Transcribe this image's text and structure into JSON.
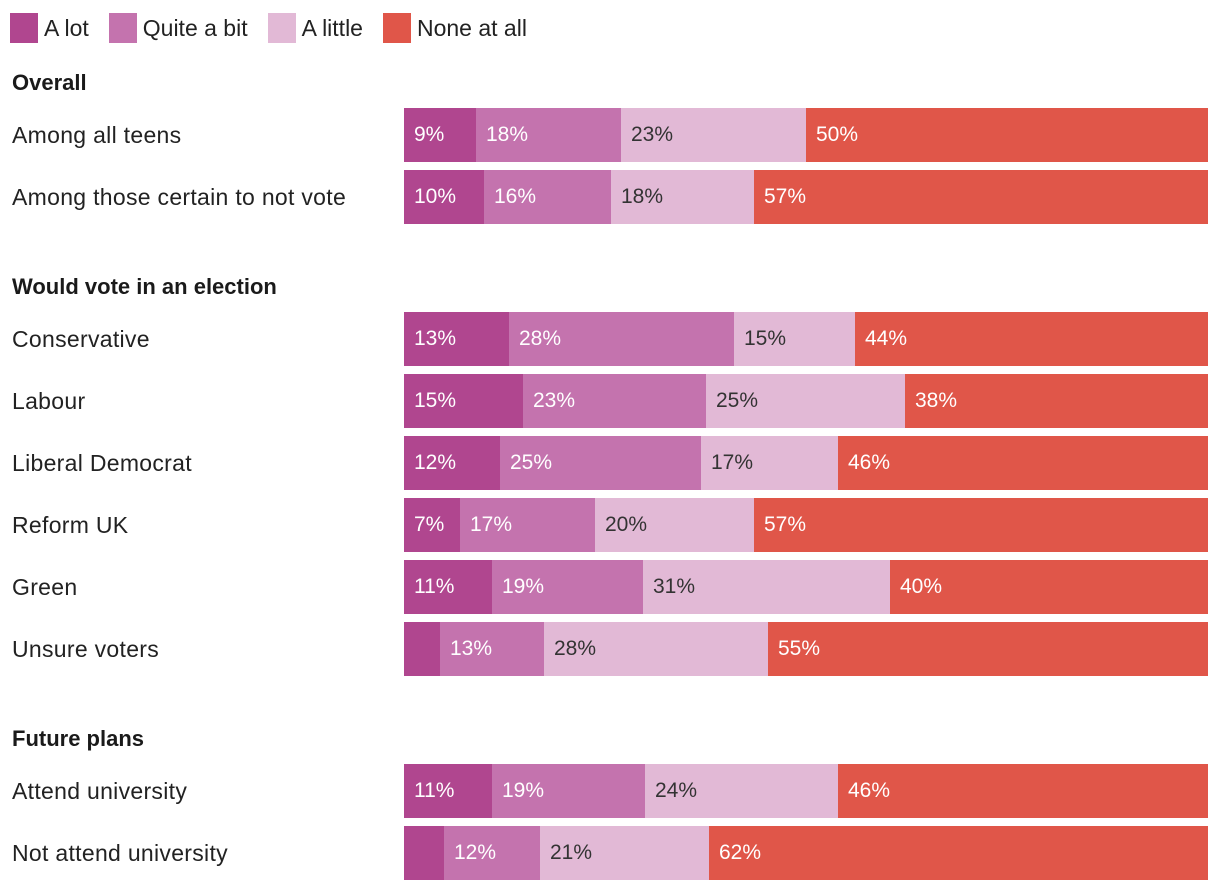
{
  "chart_data": {
    "type": "bar",
    "orientation": "horizontal",
    "stacked": true,
    "unit": "%",
    "legend": [
      {
        "key": "a_lot",
        "label": "A lot",
        "color": "#b0468f"
      },
      {
        "key": "quite_a_bit",
        "label": "Quite a bit",
        "color": "#c473ae"
      },
      {
        "key": "a_little",
        "label": "A little",
        "color": "#e2b9d6"
      },
      {
        "key": "none_at_all",
        "label": "None at all",
        "color": "#e05649"
      }
    ],
    "label_colors": {
      "a_lot": "#ffffff",
      "quite_a_bit": "#ffffff",
      "a_little": "#333333",
      "none_at_all": "#ffffff"
    },
    "groups": [
      {
        "title": "Overall",
        "rows": [
          {
            "label": "Among all teens",
            "values": [
              9,
              18,
              23,
              50
            ],
            "labels": [
              "9%",
              "18%",
              "23%",
              "50%"
            ]
          },
          {
            "label": "Among those certain to not vote",
            "values": [
              10,
              16,
              18,
              57
            ],
            "labels": [
              "10%",
              "16%",
              "18%",
              "57%"
            ]
          }
        ]
      },
      {
        "title": "Would vote in an election",
        "rows": [
          {
            "label": "Conservative",
            "values": [
              13,
              28,
              15,
              44
            ],
            "labels": [
              "13%",
              "28%",
              "15%",
              "44%"
            ]
          },
          {
            "label": "Labour",
            "values": [
              15,
              23,
              25,
              38
            ],
            "labels": [
              "15%",
              "23%",
              "25%",
              "38%"
            ]
          },
          {
            "label": "Liberal Democrat",
            "values": [
              12,
              25,
              17,
              46
            ],
            "labels": [
              "12%",
              "25%",
              "17%",
              "46%"
            ]
          },
          {
            "label": "Reform UK",
            "values": [
              7,
              17,
              20,
              57
            ],
            "labels": [
              "7%",
              "17%",
              "20%",
              "57%"
            ]
          },
          {
            "label": "Green",
            "values": [
              11,
              19,
              31,
              40
            ],
            "labels": [
              "11%",
              "19%",
              "31%",
              "40%"
            ]
          },
          {
            "label": "Unsure voters",
            "values": [
              4.5,
              13,
              28,
              55
            ],
            "labels": [
              "",
              "13%",
              "28%",
              "55%"
            ]
          }
        ]
      },
      {
        "title": "Future plans",
        "rows": [
          {
            "label": "Attend university",
            "values": [
              11,
              19,
              24,
              46
            ],
            "labels": [
              "11%",
              "19%",
              "24%",
              "46%"
            ]
          },
          {
            "label": "Not attend university",
            "values": [
              5,
              12,
              21,
              62
            ],
            "labels": [
              "",
              "12%",
              "21%",
              "62%"
            ]
          }
        ]
      }
    ]
  }
}
